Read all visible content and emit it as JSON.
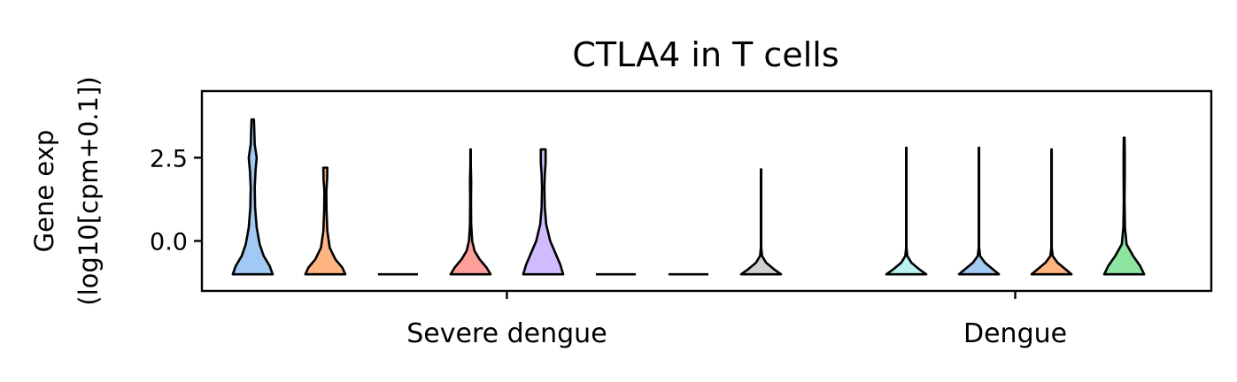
{
  "chart_data": {
    "type": "violin",
    "title": "CTLA4 in T cells",
    "ylabel_lines": [
      "Gene exp",
      "(log10[cpm+0.1])"
    ],
    "xlabel": "",
    "ylim": [
      -1.5,
      4.5
    ],
    "yticks": [
      {
        "value": -0.0,
        "label": "0.0"
      },
      {
        "value": 2.5,
        "label": "2.5"
      }
    ],
    "groups": [
      {
        "label": "Severe dengue",
        "center_index": 3.5
      },
      {
        "label": "Dengue",
        "center_index": 10.5
      }
    ],
    "violins": [
      {
        "index": 0,
        "group": "Severe dengue",
        "color": "#a1c9f4",
        "min": -1.0,
        "max": 3.65,
        "width": 0.55,
        "profile": [
          [
            -1.0,
            1.0
          ],
          [
            -0.75,
            0.85
          ],
          [
            -0.45,
            0.55
          ],
          [
            -0.1,
            0.35
          ],
          [
            0.4,
            0.2
          ],
          [
            1.0,
            0.12
          ],
          [
            1.6,
            0.1
          ],
          [
            2.1,
            0.14
          ],
          [
            2.5,
            0.2
          ],
          [
            2.9,
            0.1
          ],
          [
            3.3,
            0.08
          ],
          [
            3.65,
            0.06
          ]
        ]
      },
      {
        "index": 1,
        "group": "Severe dengue",
        "color": "#ffb482",
        "min": -1.0,
        "max": 2.2,
        "width": 0.55,
        "profile": [
          [
            -1.0,
            1.0
          ],
          [
            -0.8,
            0.85
          ],
          [
            -0.55,
            0.5
          ],
          [
            -0.2,
            0.22
          ],
          [
            0.3,
            0.1
          ],
          [
            0.9,
            0.06
          ],
          [
            1.5,
            0.05
          ],
          [
            1.85,
            0.09
          ],
          [
            2.2,
            0.1
          ]
        ]
      },
      {
        "index": 2,
        "group": "Severe dengue",
        "color": "#8de5a1",
        "min": -1.0,
        "max": -1.0,
        "width": 0.55,
        "flat": true
      },
      {
        "index": 3,
        "group": "Severe dengue",
        "color": "#ff9f9b",
        "min": -1.0,
        "max": 2.75,
        "width": 0.55,
        "profile": [
          [
            -1.0,
            1.0
          ],
          [
            -0.8,
            0.8
          ],
          [
            -0.55,
            0.45
          ],
          [
            -0.3,
            0.2
          ],
          [
            0.0,
            0.08
          ],
          [
            0.5,
            0.03
          ],
          [
            1.2,
            0.02
          ],
          [
            1.8,
            0.03
          ],
          [
            2.3,
            0.01
          ],
          [
            2.75,
            0.01
          ]
        ]
      },
      {
        "index": 4,
        "group": "Severe dengue",
        "color": "#d0bbff",
        "min": -1.0,
        "max": 2.75,
        "width": 0.55,
        "profile": [
          [
            -1.0,
            1.0
          ],
          [
            -0.7,
            0.85
          ],
          [
            -0.35,
            0.6
          ],
          [
            0.0,
            0.35
          ],
          [
            0.5,
            0.15
          ],
          [
            1.0,
            0.08
          ],
          [
            1.6,
            0.06
          ],
          [
            2.0,
            0.08
          ],
          [
            2.35,
            0.12
          ],
          [
            2.6,
            0.12
          ],
          [
            2.75,
            0.12
          ]
        ]
      },
      {
        "index": 5,
        "group": "Severe dengue",
        "color": "#debb9b",
        "min": -1.0,
        "max": -1.0,
        "width": 0.55,
        "flat": true
      },
      {
        "index": 6,
        "group": "Severe dengue",
        "color": "#fab0e4",
        "min": -1.0,
        "max": -1.0,
        "width": 0.55,
        "flat": true
      },
      {
        "index": 7,
        "group": "Severe dengue",
        "color": "#cfcfcf",
        "min": -1.0,
        "max": 2.15,
        "width": 0.55,
        "profile": [
          [
            -1.0,
            1.0
          ],
          [
            -0.85,
            0.65
          ],
          [
            -0.65,
            0.25
          ],
          [
            -0.45,
            0.05
          ],
          [
            -0.2,
            0.01
          ],
          [
            2.15,
            0.01
          ]
        ]
      },
      {
        "index": 9,
        "group": "Dengue",
        "color": "#b9f2f0",
        "min": -1.0,
        "max": 2.8,
        "width": 0.55,
        "profile": [
          [
            -1.0,
            1.0
          ],
          [
            -0.85,
            0.65
          ],
          [
            -0.65,
            0.25
          ],
          [
            -0.45,
            0.05
          ],
          [
            -0.2,
            0.01
          ],
          [
            2.8,
            0.01
          ]
        ]
      },
      {
        "index": 10,
        "group": "Dengue",
        "color": "#a1c9f4",
        "min": -1.0,
        "max": 2.8,
        "width": 0.55,
        "profile": [
          [
            -1.0,
            1.0
          ],
          [
            -0.85,
            0.7
          ],
          [
            -0.65,
            0.3
          ],
          [
            -0.45,
            0.06
          ],
          [
            -0.2,
            0.01
          ],
          [
            2.8,
            0.01
          ]
        ]
      },
      {
        "index": 11,
        "group": "Dengue",
        "color": "#ffb482",
        "min": -1.0,
        "max": 2.75,
        "width": 0.55,
        "profile": [
          [
            -1.0,
            1.0
          ],
          [
            -0.85,
            0.7
          ],
          [
            -0.65,
            0.3
          ],
          [
            -0.45,
            0.06
          ],
          [
            -0.2,
            0.01
          ],
          [
            2.75,
            0.01
          ]
        ]
      },
      {
        "index": 12,
        "group": "Dengue",
        "color": "#8de5a1",
        "min": -1.0,
        "max": 3.1,
        "width": 0.55,
        "profile": [
          [
            -1.0,
            1.0
          ],
          [
            -0.75,
            0.8
          ],
          [
            -0.45,
            0.45
          ],
          [
            -0.1,
            0.12
          ],
          [
            0.4,
            0.04
          ],
          [
            1.2,
            0.02
          ],
          [
            2.0,
            0.03
          ],
          [
            2.6,
            0.03
          ],
          [
            3.1,
            0.02
          ]
        ]
      }
    ],
    "x_index_range": [
      -0.7,
      13.2
    ]
  }
}
